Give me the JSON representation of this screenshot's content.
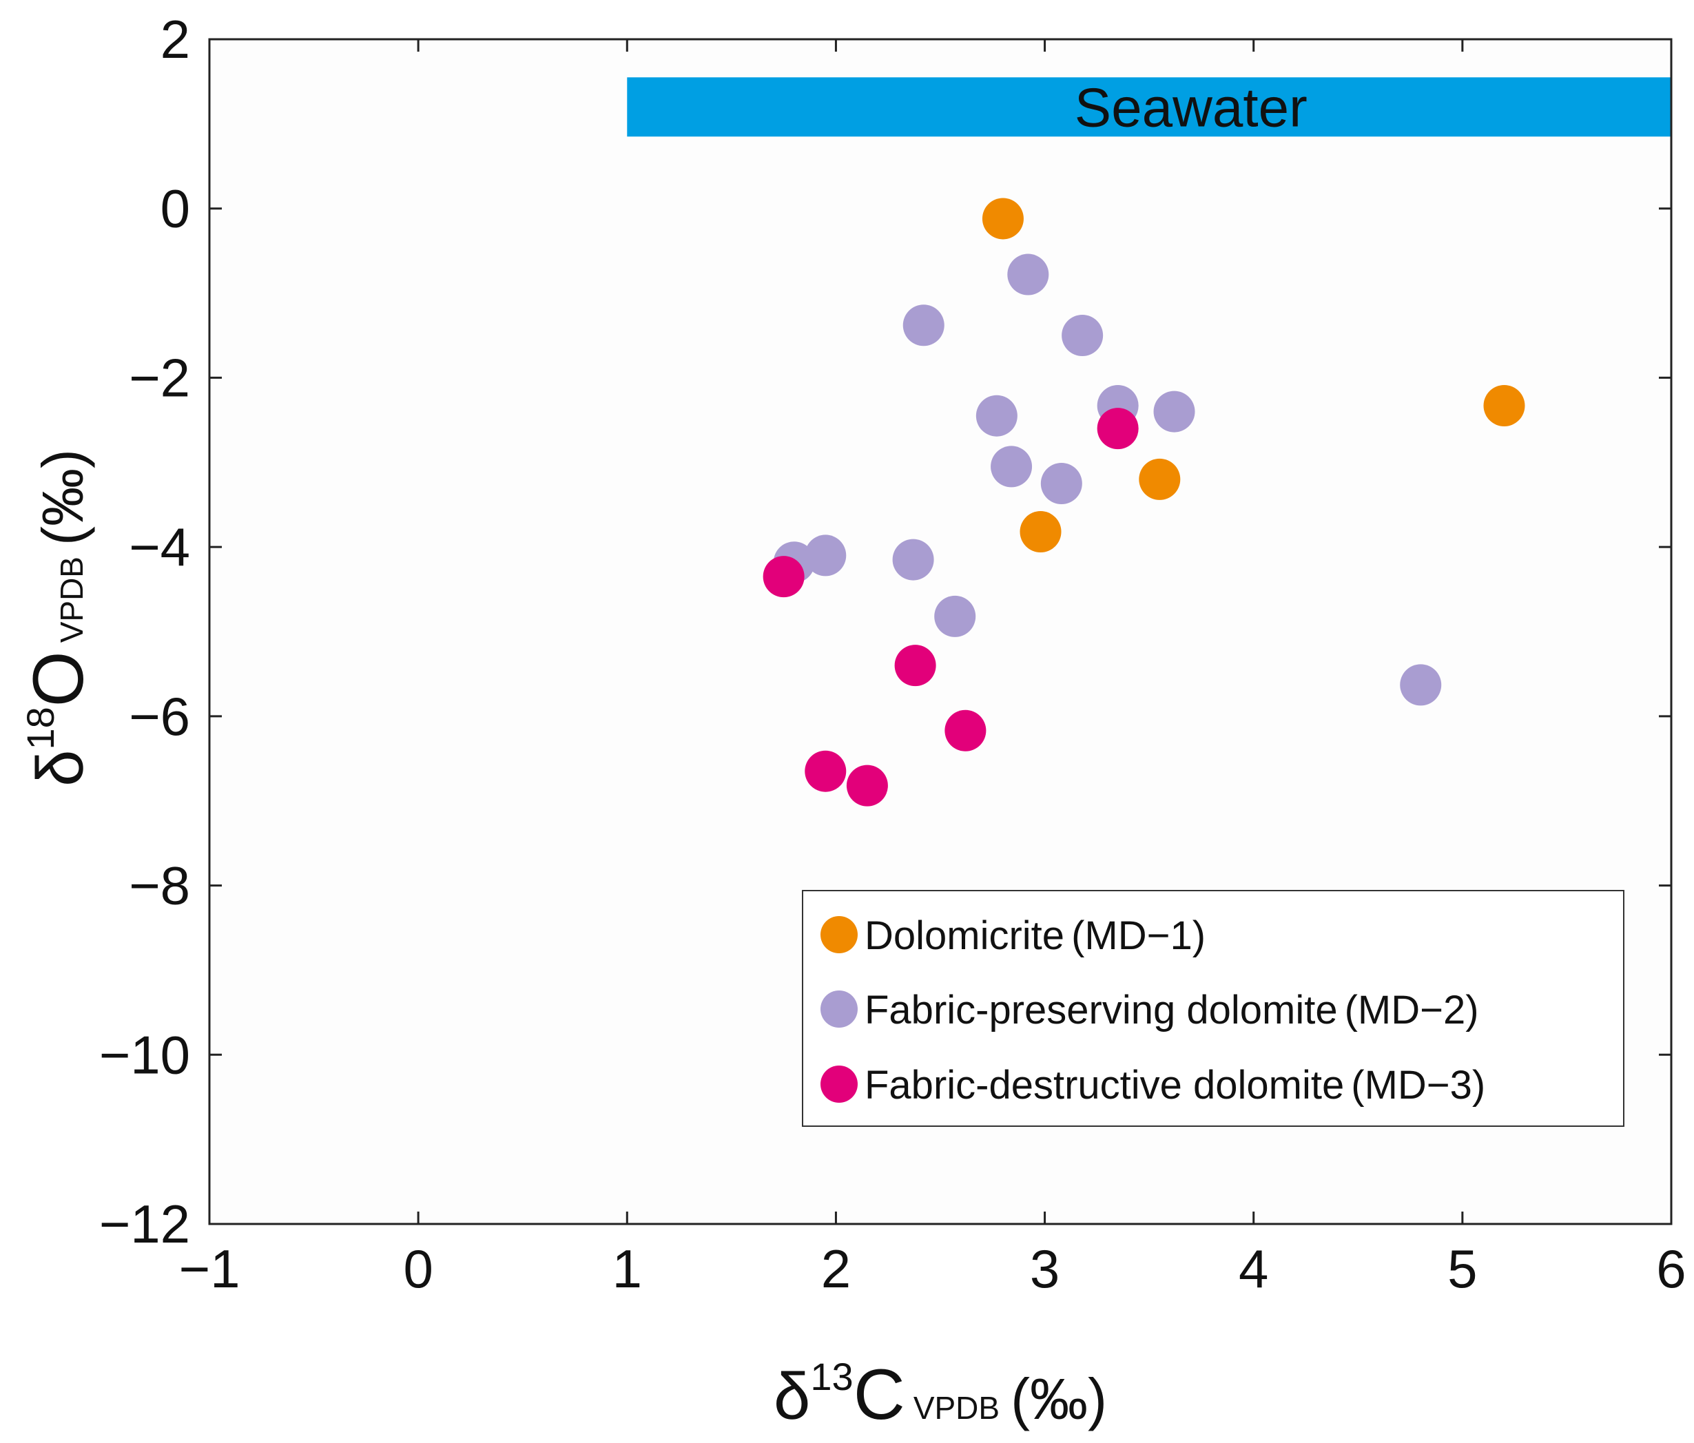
{
  "chart_data": {
    "type": "scatter",
    "xlabel": {
      "symbol": "δ",
      "superscript": "13",
      "element": "C",
      "subscript": "VPDB",
      "unit": "(‰)"
    },
    "ylabel": {
      "symbol": "δ",
      "superscript": "18",
      "element": "O",
      "subscript": "VPDB",
      "unit": "(‰)"
    },
    "xlim": [
      -1,
      6
    ],
    "ylim": [
      -12,
      2
    ],
    "xticks": [
      -1,
      0,
      1,
      2,
      3,
      4,
      5,
      6
    ],
    "yticks": [
      2,
      0,
      -2,
      -4,
      -6,
      -8,
      -10,
      -12
    ],
    "xtick_labels": [
      "−1",
      "0",
      "1",
      "2",
      "3",
      "4",
      "5",
      "6"
    ],
    "ytick_labels": [
      "2",
      "0",
      "−2",
      "−4",
      "−6",
      "−8",
      "−10",
      "−12"
    ],
    "grid": false,
    "legend_position": "bottom-right",
    "band": {
      "label": "Seawater",
      "x_range": [
        1,
        6
      ],
      "y_range": [
        0.85,
        1.55
      ],
      "color": "#009fe3"
    },
    "series": [
      {
        "name": "Dolomicrite",
        "code": "(MD−1)",
        "color": "#f08a00",
        "points": [
          [
            2.8,
            -0.12
          ],
          [
            5.2,
            -2.33
          ],
          [
            3.55,
            -3.2
          ],
          [
            2.98,
            -3.82
          ]
        ]
      },
      {
        "name": "Fabric-preserving dolomite",
        "code": "(MD−2)",
        "color": "#a99dd1",
        "points": [
          [
            2.92,
            -0.78
          ],
          [
            2.42,
            -1.38
          ],
          [
            3.18,
            -1.5
          ],
          [
            2.77,
            -2.45
          ],
          [
            3.35,
            -2.33
          ],
          [
            3.62,
            -2.4
          ],
          [
            2.84,
            -3.05
          ],
          [
            3.08,
            -3.25
          ],
          [
            1.8,
            -4.18
          ],
          [
            1.95,
            -4.1
          ],
          [
            2.37,
            -4.15
          ],
          [
            2.57,
            -4.82
          ],
          [
            4.8,
            -5.63
          ]
        ]
      },
      {
        "name": "Fabric-destructive dolomite",
        "code": "(MD−3)",
        "color": "#e2007a",
        "points": [
          [
            3.35,
            -2.6
          ],
          [
            1.75,
            -4.35
          ],
          [
            2.38,
            -5.4
          ],
          [
            2.62,
            -6.17
          ],
          [
            1.95,
            -6.65
          ],
          [
            2.15,
            -6.82
          ]
        ]
      }
    ]
  }
}
